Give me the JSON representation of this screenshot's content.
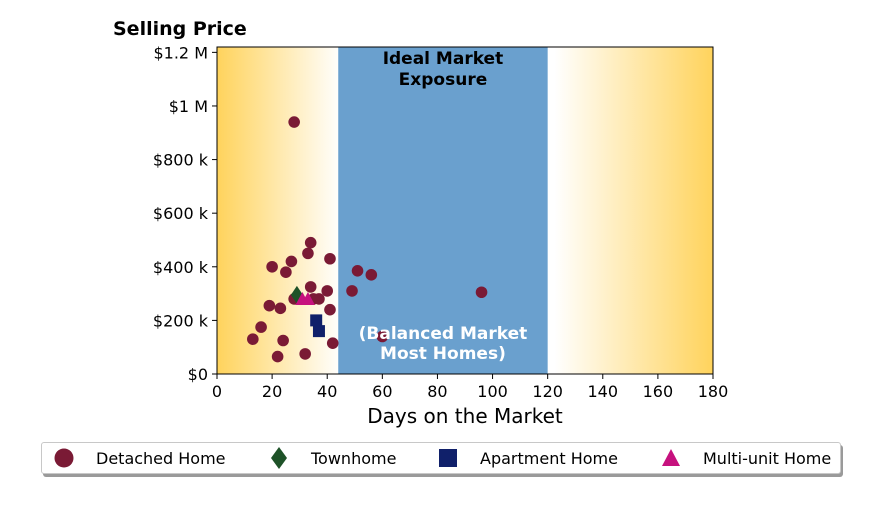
{
  "chart_data": {
    "type": "scatter",
    "ylabel": "Selling Price",
    "xlabel": "Days on the Market",
    "xlim": [
      0,
      180
    ],
    "ylim": [
      0,
      1220000
    ],
    "x_ticks": [
      0,
      20,
      40,
      60,
      80,
      100,
      120,
      140,
      160,
      180
    ],
    "x_tick_labels": [
      "0",
      "20",
      "40",
      "60",
      "80",
      "100",
      "120",
      "140",
      "160",
      "180"
    ],
    "y_ticks": [
      0,
      200000,
      400000,
      600000,
      800000,
      1000000,
      1200000
    ],
    "y_tick_labels": [
      "$0",
      "$200 k",
      "$400 k",
      "$600 k",
      "$800 k",
      "$1 M",
      "$1.2 M"
    ],
    "grid": false,
    "background_gradient": {
      "edge_color": "#FFD35C",
      "center_color": "#FFFFFF"
    },
    "highlight_band": {
      "x_range": [
        44,
        120
      ],
      "color": "#6AA0CE",
      "title_lines": [
        "Ideal Market",
        "Exposure"
      ],
      "note_lines": [
        "(Balanced Market",
        "Most Homes)"
      ]
    },
    "legend_position": "bottom",
    "series": [
      {
        "name": "Detached Home",
        "marker": "circle",
        "color": "#7A1A35",
        "points": [
          [
            13,
            130000
          ],
          [
            16,
            175000
          ],
          [
            19,
            255000
          ],
          [
            20,
            400000
          ],
          [
            22,
            65000
          ],
          [
            23,
            245000
          ],
          [
            24,
            125000
          ],
          [
            25,
            380000
          ],
          [
            27,
            420000
          ],
          [
            28,
            940000
          ],
          [
            28,
            280000
          ],
          [
            32,
            75000
          ],
          [
            33,
            450000
          ],
          [
            34,
            490000
          ],
          [
            34,
            325000
          ],
          [
            35,
            280000
          ],
          [
            37,
            280000
          ],
          [
            40,
            310000
          ],
          [
            41,
            430000
          ],
          [
            41,
            240000
          ],
          [
            42,
            115000
          ],
          [
            49,
            310000
          ],
          [
            51,
            385000
          ],
          [
            56,
            370000
          ],
          [
            60,
            140000
          ],
          [
            96,
            305000
          ]
        ]
      },
      {
        "name": "Townhome",
        "marker": "diamond",
        "color": "#1E5228",
        "points": [
          [
            29,
            295000
          ]
        ]
      },
      {
        "name": "Apartment Home",
        "marker": "square",
        "color": "#10206A",
        "points": [
          [
            36,
            200000
          ],
          [
            37,
            160000
          ]
        ]
      },
      {
        "name": "Multi-unit Home",
        "marker": "triangle",
        "color": "#C6117E",
        "points": [
          [
            31,
            280000
          ],
          [
            33,
            280000
          ]
        ]
      }
    ]
  }
}
